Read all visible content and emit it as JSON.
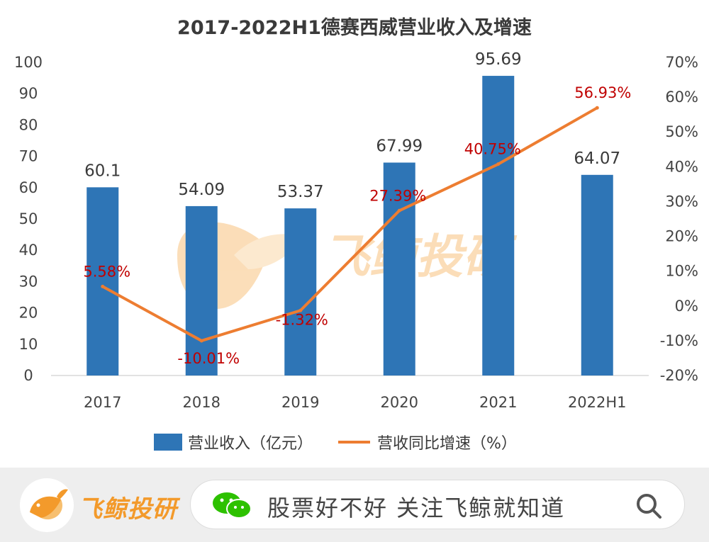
{
  "chart_data": {
    "type": "bar+line",
    "title": "2017-2022H1德赛西威营业收入及增速",
    "categories": [
      "2017",
      "2018",
      "2019",
      "2020",
      "2021",
      "2022H1"
    ],
    "series": [
      {
        "name": "营业收入（亿元）",
        "type": "bar",
        "axis": "left",
        "values": [
          60.1,
          54.09,
          53.37,
          67.99,
          95.69,
          64.07
        ],
        "labels": [
          "60.1",
          "54.09",
          "53.37",
          "67.99",
          "95.69",
          "64.07"
        ],
        "color": "#2e75b6"
      },
      {
        "name": "营收同比增速（%）",
        "type": "line",
        "axis": "right",
        "values": [
          5.58,
          -10.01,
          -1.32,
          27.39,
          40.75,
          56.93
        ],
        "labels": [
          "5.58%",
          "-10.01%",
          "-1.32%",
          "27.39%",
          "40.75%",
          "56.93%"
        ],
        "color": "#ed7d31",
        "label_color": "#c00000"
      }
    ],
    "left_axis": {
      "ylim": [
        0,
        100
      ],
      "ticks": [
        "100",
        "90",
        "80",
        "70",
        "60",
        "50",
        "40",
        "30",
        "20",
        "10",
        "0"
      ]
    },
    "right_axis": {
      "ylim": [
        -20,
        70
      ],
      "ticks": [
        "70%",
        "60%",
        "50%",
        "40%",
        "30%",
        "20%",
        "10%",
        "0%",
        "-10%",
        "-20%"
      ]
    },
    "grid": false,
    "legend_position": "bottom"
  },
  "watermark": {
    "text": "飞鲸投研"
  },
  "footer": {
    "brand": "飞鲸投研",
    "search_text": "股票好不好 关注飞鲸就知道"
  }
}
